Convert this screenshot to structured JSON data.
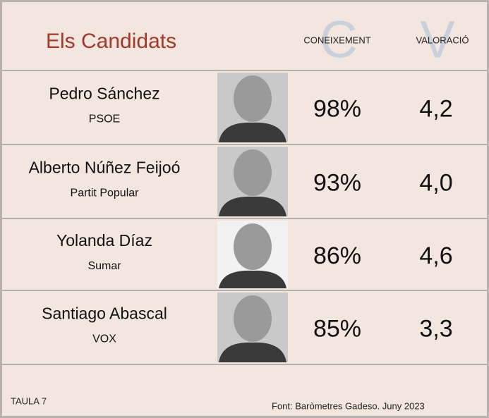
{
  "header": {
    "title": "Els Candidats",
    "columns": [
      {
        "letter": "C",
        "label": "CONEIXEMENT"
      },
      {
        "letter": "V",
        "label": "VALORACIÓ"
      }
    ]
  },
  "table": {
    "rows": [
      {
        "name": "Pedro Sánchez",
        "party": "PSOE",
        "coneixement": "98%",
        "valoracio": "4,2"
      },
      {
        "name": "Alberto Núñez Feijoó",
        "party": "Partit Popular",
        "coneixement": "93%",
        "valoracio": "4,0"
      },
      {
        "name": "Yolanda Díaz",
        "party": "Sumar",
        "coneixement": "86%",
        "valoracio": "4,6"
      },
      {
        "name": "Santiago Abascal",
        "party": "VOX",
        "coneixement": "85%",
        "valoracio": "3,3"
      }
    ]
  },
  "footer": {
    "label": "TAULA 7",
    "source": "Font: Baròmetres Gadeso. Juny 2023"
  }
}
